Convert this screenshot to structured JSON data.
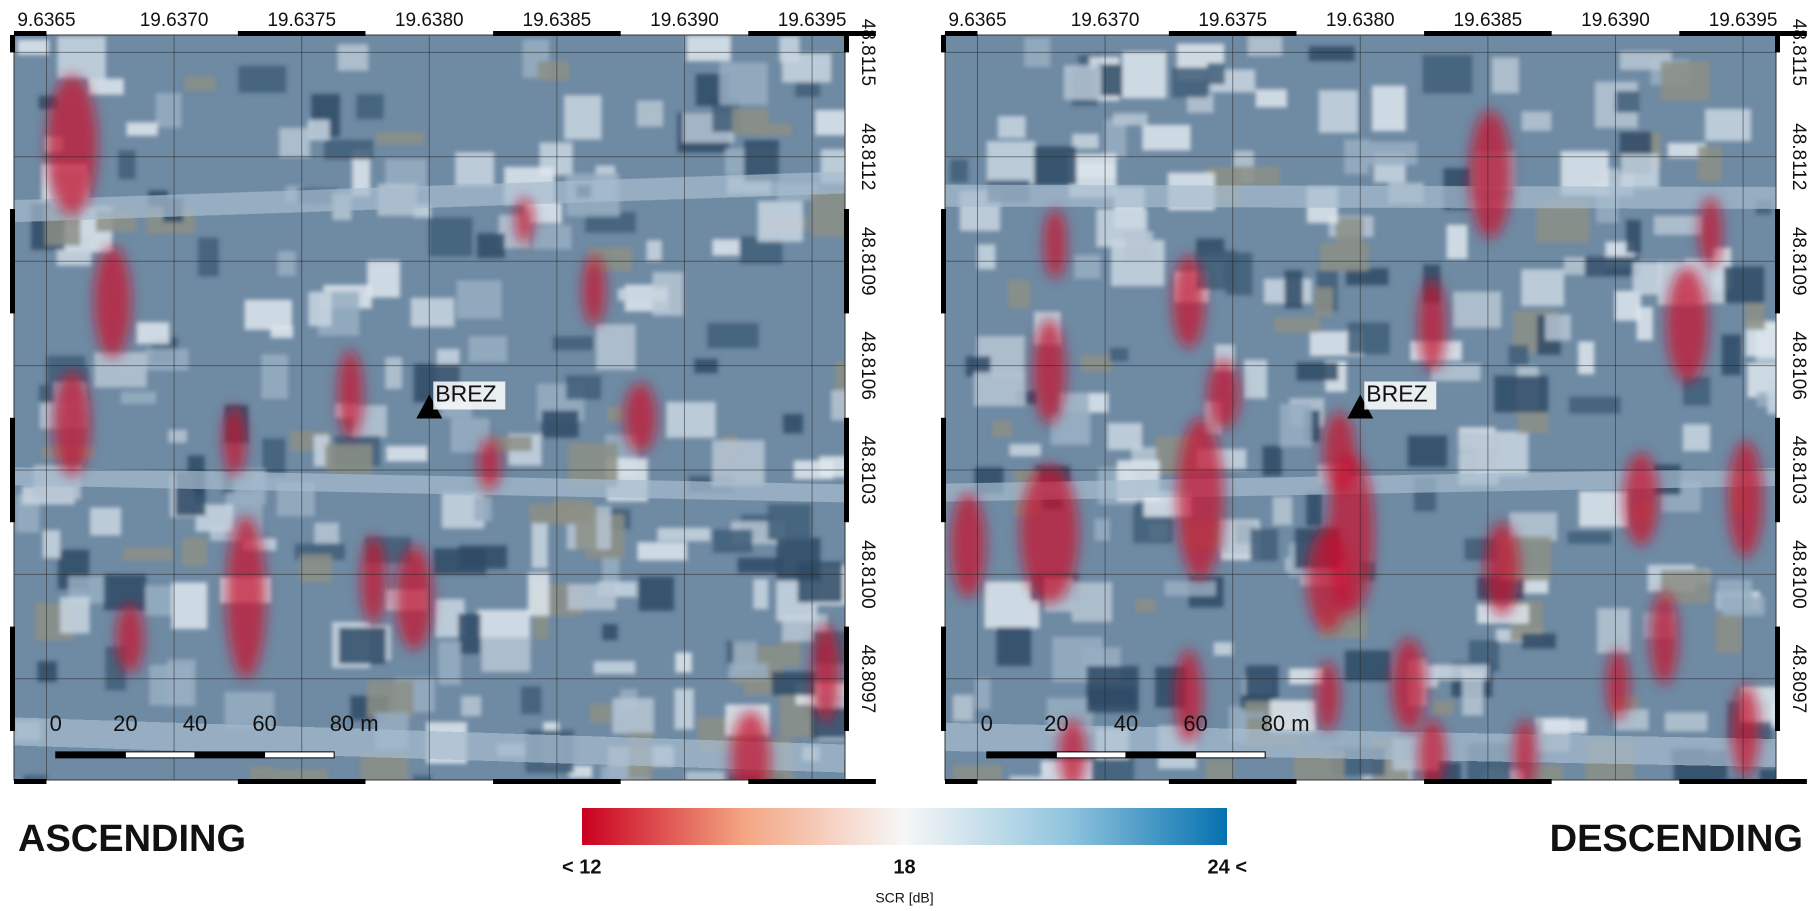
{
  "panels": [
    {
      "title": "ASCENDING",
      "lon_labels": [
        "9.6365",
        "19.6370",
        "19.6375",
        "19.6380",
        "19.6385",
        "19.6390",
        "19.6395"
      ],
      "lat_labels": [
        "48.8115",
        "48.8112",
        "48.8109",
        "48.8106",
        "48.8103",
        "48.8100",
        "48.8097"
      ],
      "scale_labels": [
        "0",
        "20",
        "40",
        "60",
        "80 m"
      ],
      "marker_label": "BREZ"
    },
    {
      "title": "DESCENDING",
      "lon_labels": [
        "9.6365",
        "19.6370",
        "19.6375",
        "19.6380",
        "19.6385",
        "19.6390",
        "19.6395"
      ],
      "lat_labels": [
        "48.8115",
        "48.8112",
        "48.8109",
        "48.8106",
        "48.8103",
        "48.8100",
        "48.8097"
      ],
      "scale_labels": [
        "0",
        "20",
        "40",
        "60",
        "80 m"
      ],
      "marker_label": "BREZ"
    }
  ],
  "colorbar": {
    "label": "SCR [dB]",
    "range": [
      12,
      24
    ],
    "ticks": [
      {
        "value": 12,
        "label": "< 12"
      },
      18,
      {
        "value": 24,
        "label": "24 <"
      }
    ]
  }
}
